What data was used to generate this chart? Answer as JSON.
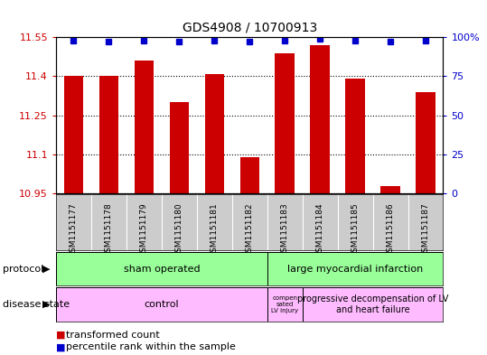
{
  "title": "GDS4908 / 10700913",
  "samples": [
    "GSM1151177",
    "GSM1151178",
    "GSM1151179",
    "GSM1151180",
    "GSM1151181",
    "GSM1151182",
    "GSM1151183",
    "GSM1151184",
    "GSM1151185",
    "GSM1151186",
    "GSM1151187"
  ],
  "bar_values": [
    11.4,
    11.4,
    11.46,
    11.3,
    11.41,
    11.09,
    11.49,
    11.52,
    11.39,
    10.98,
    11.34
  ],
  "percentile_values": [
    98,
    97,
    98,
    97,
    98,
    97,
    98,
    99,
    98,
    97,
    98
  ],
  "ylim_left": [
    10.95,
    11.55
  ],
  "ylim_right": [
    0,
    100
  ],
  "yticks_left": [
    10.95,
    11.1,
    11.25,
    11.4,
    11.55
  ],
  "yticks_right": [
    0,
    25,
    50,
    75,
    100
  ],
  "bar_color": "#cc0000",
  "dot_color": "#0000cc",
  "label_bg_color": "#cccccc",
  "protocol_color": "#99ff99",
  "disease_color": "#ffbbff",
  "legend_square_red": "#cc0000",
  "legend_square_blue": "#0000cc"
}
